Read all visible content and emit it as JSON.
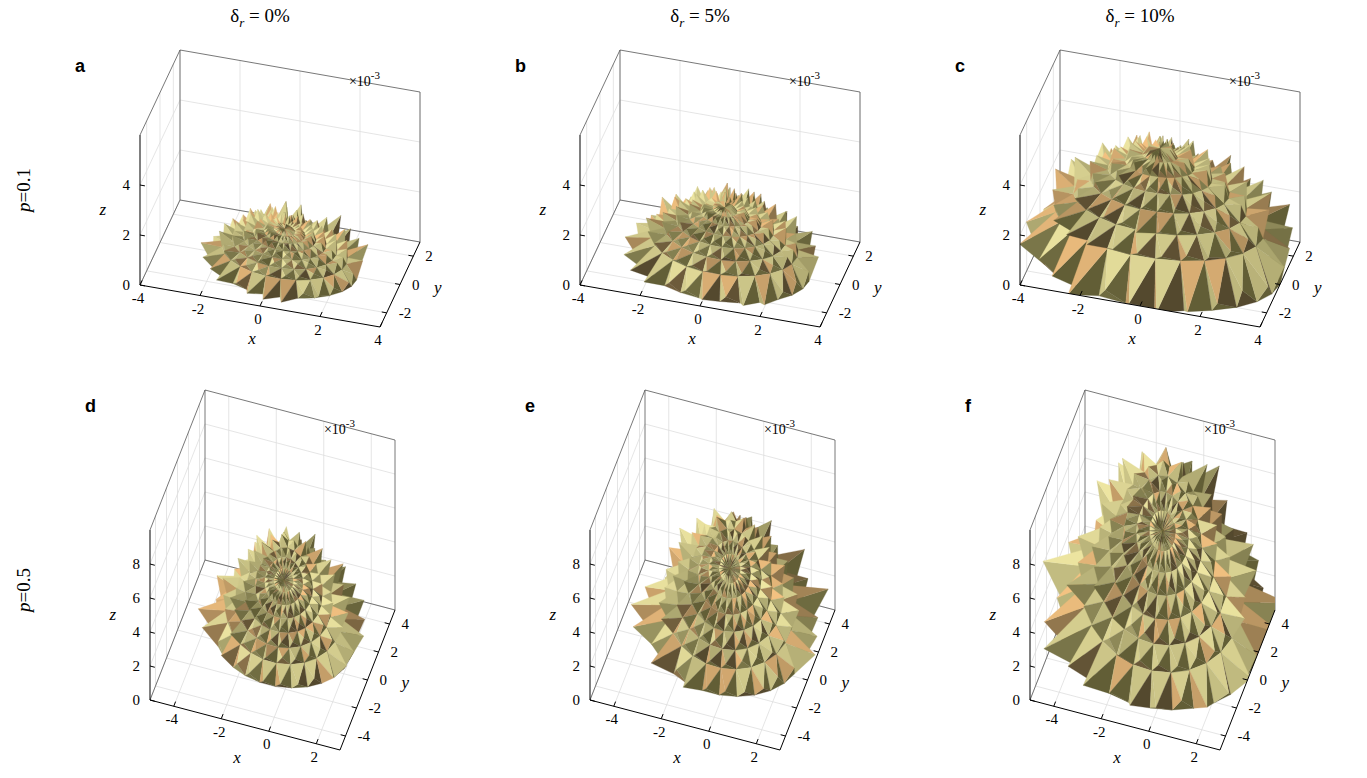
{
  "column_titles": [
    {
      "symbol": "δ",
      "subscript": "r",
      "text": " = 0%"
    },
    {
      "symbol": "δ",
      "subscript": "r",
      "text": " = 5%"
    },
    {
      "symbol": "δ",
      "subscript": "r",
      "text": " = 10%"
    }
  ],
  "row_titles": [
    {
      "variable": "p",
      "text": "=0.1"
    },
    {
      "variable": "p",
      "text": "=0.5"
    }
  ],
  "chart_data": [
    {
      "type": "surface",
      "panel": "a",
      "xlabel": "x",
      "ylabel": "y",
      "zlabel": "z",
      "z_multiplier": {
        "base": "×10",
        "exponent": "-3"
      },
      "xlim": [
        -4,
        4
      ],
      "ylim": [
        -3,
        3
      ],
      "zlim": [
        0,
        6
      ],
      "xticks": [
        -4,
        -2,
        0,
        2,
        4
      ],
      "yticks": [
        -2,
        0,
        2
      ],
      "zticks": [
        0,
        2,
        4
      ],
      "grid": true,
      "surface": {
        "x_range": [
          -2.2,
          2.6
        ],
        "y_range": [
          -2.2,
          1.8
        ],
        "peak": [
          0,
          0
        ],
        "z_max": 1.6
      }
    },
    {
      "type": "surface",
      "panel": "b",
      "xlabel": "x",
      "ylabel": "y",
      "zlabel": "z",
      "z_multiplier": {
        "base": "×10",
        "exponent": "-3"
      },
      "xlim": [
        -4,
        4
      ],
      "ylim": [
        -3,
        3
      ],
      "zlim": [
        0,
        6
      ],
      "xticks": [
        -4,
        -2,
        0,
        2,
        4
      ],
      "yticks": [
        -2,
        0,
        2
      ],
      "zticks": [
        0,
        2,
        4
      ],
      "grid": true,
      "surface": {
        "x_range": [
          -2.6,
          3
        ],
        "y_range": [
          -2.5,
          2.2
        ],
        "peak": [
          0,
          0
        ],
        "z_max": 2.4
      }
    },
    {
      "type": "surface",
      "panel": "c",
      "xlabel": "x",
      "ylabel": "y",
      "zlabel": "z",
      "z_multiplier": {
        "base": "×10",
        "exponent": "-3"
      },
      "xlim": [
        -4,
        4
      ],
      "ylim": [
        -3,
        3
      ],
      "zlim": [
        0,
        6
      ],
      "xticks": [
        -4,
        -2,
        0,
        2,
        4
      ],
      "yticks": [
        -2,
        0,
        2
      ],
      "zticks": [
        0,
        2,
        4
      ],
      "grid": true,
      "surface": {
        "x_range": [
          -4,
          4
        ],
        "y_range": [
          -3,
          3
        ],
        "peak": [
          0,
          0
        ],
        "z_max": 4.6
      }
    },
    {
      "type": "surface",
      "panel": "d",
      "xlabel": "x",
      "ylabel": "y",
      "zlabel": "z",
      "z_multiplier": {
        "base": "×10",
        "exponent": "-3"
      },
      "xlim": [
        -5,
        3
      ],
      "ylim": [
        -5,
        5
      ],
      "zlim": [
        0,
        10
      ],
      "xticks": [
        -4,
        -2,
        0,
        2
      ],
      "yticks": [
        -4,
        -2,
        0,
        2,
        4
      ],
      "zticks": [
        0,
        2,
        4,
        6,
        8
      ],
      "grid": true,
      "surface": {
        "x_range": [
          -3.5,
          2
        ],
        "y_range": [
          -2,
          4
        ],
        "peak": [
          -1,
          3
        ],
        "z_max": 4.5
      }
    },
    {
      "type": "surface",
      "panel": "e",
      "xlabel": "x",
      "ylabel": "y",
      "zlabel": "z",
      "z_multiplier": {
        "base": "×10",
        "exponent": "-3"
      },
      "xlim": [
        -5,
        3
      ],
      "ylim": [
        -5,
        5
      ],
      "zlim": [
        0,
        10
      ],
      "xticks": [
        -4,
        -2,
        0,
        2
      ],
      "yticks": [
        -4,
        -2,
        0,
        2,
        4
      ],
      "zticks": [
        0,
        2,
        4,
        6,
        8
      ],
      "grid": true,
      "surface": {
        "x_range": [
          -3.5,
          2.5
        ],
        "y_range": [
          -2.5,
          4.5
        ],
        "peak": [
          -1,
          3.5
        ],
        "z_max": 5.5
      }
    },
    {
      "type": "surface",
      "panel": "f",
      "xlabel": "x",
      "ylabel": "y",
      "zlabel": "z",
      "z_multiplier": {
        "base": "×10",
        "exponent": "-3"
      },
      "xlim": [
        -5,
        3
      ],
      "ylim": [
        -5,
        5
      ],
      "zlim": [
        0,
        10
      ],
      "xticks": [
        -4,
        -2,
        0,
        2
      ],
      "yticks": [
        -4,
        -2,
        0,
        2,
        4
      ],
      "zticks": [
        0,
        2,
        4,
        6,
        8
      ],
      "grid": true,
      "surface": {
        "x_range": [
          -4.5,
          3
        ],
        "y_range": [
          -3.5,
          5
        ],
        "peak": [
          -1.5,
          4
        ],
        "z_max": 8.5
      }
    }
  ]
}
